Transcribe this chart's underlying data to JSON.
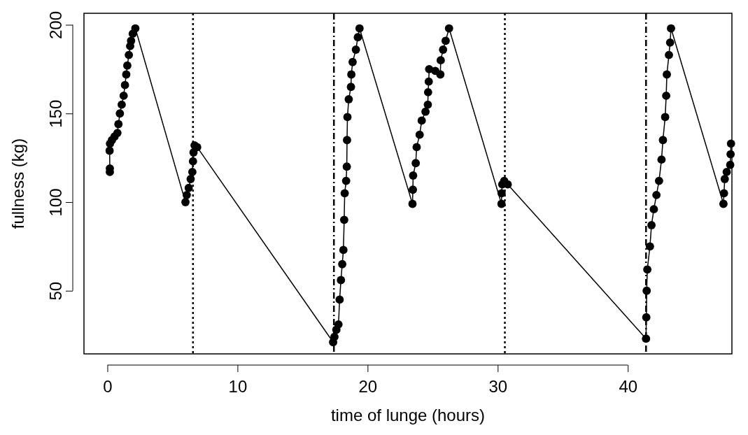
{
  "chart_data": {
    "type": "line",
    "xlabel": "time of lunge (hours)",
    "ylabel": "fullness (kg)",
    "xlim": [
      -1.8,
      48
    ],
    "xticks": [
      0,
      10,
      20,
      30,
      40
    ],
    "ylim": [
      14.4,
      206.5
    ],
    "yticks": [
      50,
      100,
      150,
      200
    ],
    "grid": false,
    "marker": "circle",
    "line_style": "solid",
    "series": [
      {
        "color": "#000000",
        "x": [
          0.19,
          0.19,
          0.17,
          0.2,
          0.35,
          0.55,
          0.77,
          0.85,
          0.96,
          1.1,
          1.25,
          1.35,
          1.45,
          1.53,
          1.65,
          1.75,
          1.82,
          1.95,
          2.15,
          6.0,
          6.1,
          6.25,
          6.4,
          6.53,
          6.58,
          6.62,
          6.7,
          6.9,
          17.35,
          17.45,
          17.6,
          17.76,
          17.85,
          17.95,
          18.05,
          18.14,
          18.2,
          18.24,
          18.35,
          18.4,
          18.42,
          18.45,
          18.55,
          18.72,
          18.75,
          18.85,
          19.1,
          19.25,
          19.38,
          23.45,
          23.48,
          23.5,
          23.7,
          23.77,
          24.0,
          24.16,
          24.45,
          24.63,
          24.65,
          24.7,
          24.73,
          25.2,
          25.59,
          25.62,
          25.8,
          26.0,
          26.26,
          30.29,
          30.3,
          30.35,
          30.5,
          30.77,
          41.4,
          41.42,
          41.45,
          41.5,
          41.7,
          41.82,
          42.0,
          42.2,
          42.4,
          42.59,
          42.7,
          42.87,
          42.95,
          43.0,
          43.16,
          43.25,
          43.32,
          47.35,
          47.39,
          47.45,
          47.6,
          47.87,
          47.9,
          47.93
        ],
        "values": [
          117,
          119,
          129,
          133,
          135,
          137,
          139,
          144,
          150,
          155,
          160,
          166,
          172,
          177,
          183,
          188,
          191,
          195,
          198,
          100,
          104,
          108,
          113,
          117,
          123,
          128,
          132,
          131,
          21,
          24,
          28,
          31,
          45,
          56,
          65,
          73,
          90,
          105,
          112,
          120,
          135,
          148,
          158,
          165,
          172,
          179,
          186,
          193,
          198,
          99,
          107,
          115,
          122,
          131,
          138,
          146,
          151,
          155,
          162,
          168,
          175,
          174,
          172,
          180,
          186,
          191,
          198,
          99,
          105,
          110,
          112,
          110,
          23,
          35,
          50,
          62,
          75,
          87,
          96,
          104,
          112,
          124,
          135,
          148,
          160,
          172,
          183,
          190,
          198,
          99,
          105,
          113,
          117,
          121,
          127,
          133
        ]
      }
    ],
    "ref_lines": [
      {
        "axis": "x",
        "value": 6.58,
        "line_style": "dotted"
      },
      {
        "axis": "x",
        "value": 17.41,
        "line_style": "dashed"
      },
      {
        "axis": "x",
        "value": 30.55,
        "line_style": "dotted"
      },
      {
        "axis": "x",
        "value": 41.4,
        "line_style": "dashed"
      }
    ]
  }
}
